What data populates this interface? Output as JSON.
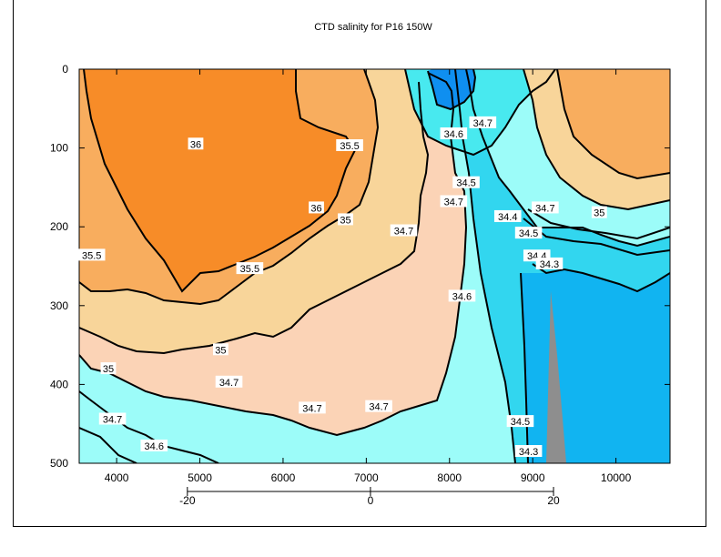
{
  "chart_data": {
    "type": "heatmap",
    "title": "CTD salinity for P16 150W",
    "xlabel": "",
    "ylabel": "",
    "x_range": [
      3550,
      10650
    ],
    "y_range": [
      0,
      500
    ],
    "y_inverted": true,
    "x_ticks": [
      "4000",
      "5000",
      "6000",
      "7000",
      "8000",
      "9000",
      "10000"
    ],
    "x_tick_values": [
      4000,
      5000,
      6000,
      7000,
      8000,
      9000,
      10000
    ],
    "y_ticks": [
      "0",
      "100",
      "200",
      "300",
      "400",
      "500"
    ],
    "y_tick_values": [
      0,
      100,
      200,
      300,
      400,
      500
    ],
    "secondary_axis": {
      "ticks": [
        "-20",
        "0",
        "20"
      ],
      "tick_values": [
        -20,
        0,
        20
      ],
      "x_positions": [
        4850,
        7050,
        9250
      ]
    },
    "colors": {
      "sal_gt_36": "#f78c28",
      "sal_35_5_36": "#f8ad5e",
      "sal_35_35_5": "#f8d59a",
      "sal_34_7_35": "#fbd3b6",
      "sal_34_6_34_7": "#9cfcf9",
      "sal_34_5_34_6": "#48e9ef",
      "sal_34_4_34_5": "#32d6ef",
      "sal_lt_34_4": "#11b4f1",
      "fresh_core": "#0f8ff0",
      "topography": "#8e8e8e"
    },
    "contour_labels": [
      {
        "text": "36",
        "x": 4950,
        "y": 95
      },
      {
        "text": "35.5",
        "x": 6800,
        "y": 97
      },
      {
        "text": "36",
        "x": 6400,
        "y": 176
      },
      {
        "text": "35",
        "x": 6750,
        "y": 191
      },
      {
        "text": "34.7",
        "x": 7450,
        "y": 205
      },
      {
        "text": "35.5",
        "x": 3700,
        "y": 236
      },
      {
        "text": "35.5",
        "x": 5600,
        "y": 253
      },
      {
        "text": "34.7",
        "x": 8400,
        "y": 68
      },
      {
        "text": "34.6",
        "x": 8050,
        "y": 82
      },
      {
        "text": "34.5",
        "x": 8200,
        "y": 144
      },
      {
        "text": "34.7",
        "x": 8050,
        "y": 168
      },
      {
        "text": "34.4",
        "x": 8700,
        "y": 187
      },
      {
        "text": "34.7",
        "x": 9150,
        "y": 176
      },
      {
        "text": "35",
        "x": 9800,
        "y": 182
      },
      {
        "text": "34.5",
        "x": 8950,
        "y": 208
      },
      {
        "text": "34.4",
        "x": 9050,
        "y": 237
      },
      {
        "text": "34.3",
        "x": 9200,
        "y": 247
      },
      {
        "text": "34.6",
        "x": 8150,
        "y": 288
      },
      {
        "text": "35",
        "x": 5250,
        "y": 356
      },
      {
        "text": "35",
        "x": 3900,
        "y": 380
      },
      {
        "text": "34.7",
        "x": 5350,
        "y": 397
      },
      {
        "text": "34.7",
        "x": 6350,
        "y": 430
      },
      {
        "text": "34.7",
        "x": 7150,
        "y": 428
      },
      {
        "text": "34.7",
        "x": 3950,
        "y": 444
      },
      {
        "text": "34.6",
        "x": 4450,
        "y": 478
      },
      {
        "text": "34.5",
        "x": 8850,
        "y": 447
      },
      {
        "text": "34.3",
        "x": 8950,
        "y": 485
      }
    ]
  }
}
